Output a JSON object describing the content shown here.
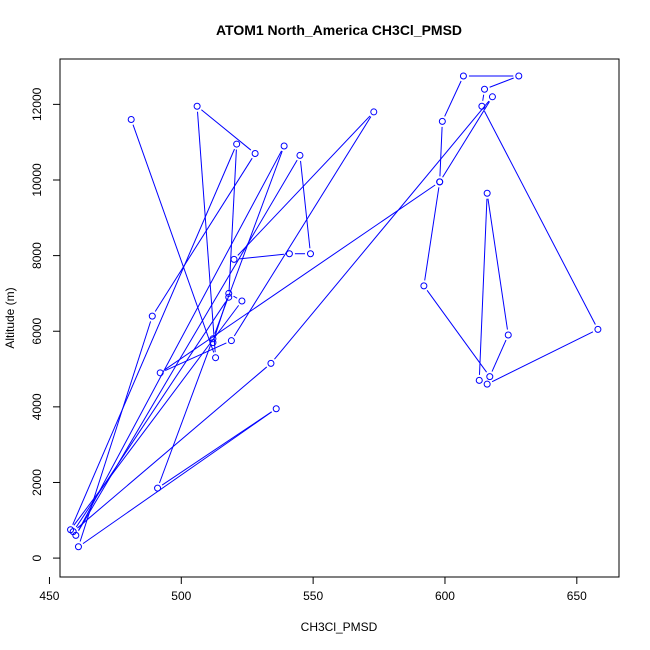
{
  "chart_data": {
    "type": "line",
    "title": "ATOM1 North_America CH3Cl_PMSD",
    "xlabel": "CH3Cl_PMSD",
    "ylabel": "Altitude (m)",
    "xlim": [
      454,
      666
    ],
    "ylim": [
      -500,
      13200
    ],
    "xticks": [
      450,
      500,
      550,
      600,
      650
    ],
    "yticks": [
      0,
      2000,
      4000,
      6000,
      8000,
      10000,
      12000
    ],
    "series_color": "#0000ff",
    "x": [
      481,
      513,
      506,
      528,
      489,
      461,
      536,
      491,
      512,
      539,
      460,
      545,
      549,
      541,
      520,
      573,
      519,
      492,
      598,
      599,
      607,
      628,
      615,
      614,
      658,
      616,
      613,
      616,
      624,
      617,
      592,
      598,
      618,
      534,
      459,
      518,
      521,
      458,
      523,
      518,
      512
    ],
    "y": [
      11600,
      5300,
      11950,
      10700,
      6400,
      300,
      3950,
      1850,
      5800,
      10900,
      600,
      10650,
      8050,
      8050,
      7900,
      11800,
      5750,
      4900,
      9950,
      11550,
      12750,
      12750,
      12400,
      11950,
      6050,
      4600,
      4700,
      9650,
      5900,
      4800,
      7200,
      9950,
      12200,
      5150,
      700,
      6900,
      10950,
      750,
      6800,
      7000,
      5700
    ]
  }
}
